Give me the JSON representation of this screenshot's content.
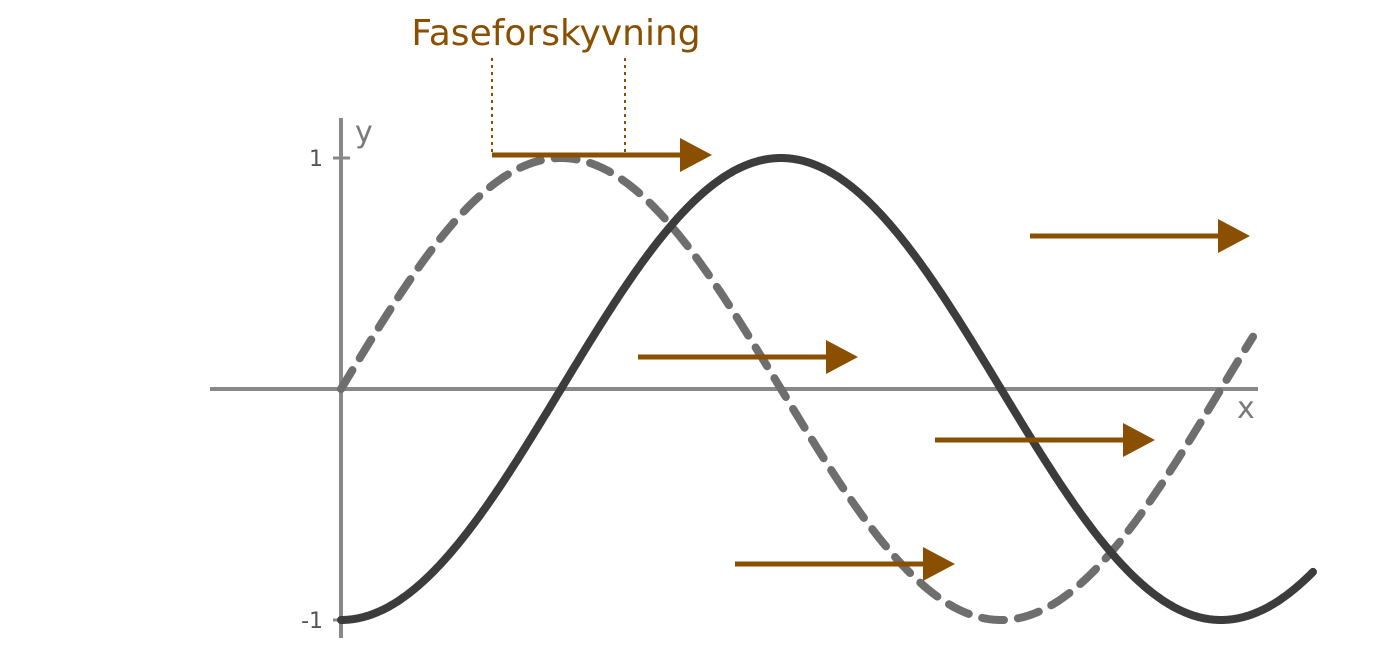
{
  "title": "Faseforskyvning",
  "axes": {
    "x_label": "x",
    "y_label": "y",
    "y_ticks": [
      {
        "value": 1,
        "label": "1"
      },
      {
        "value": -1,
        "label": "-1"
      }
    ]
  },
  "curves": {
    "original": {
      "style": "dashed",
      "color": "#6e6e6e",
      "function": "sin"
    },
    "shifted": {
      "style": "solid",
      "color": "#3c3c3c",
      "function": "sin(x - phase)",
      "phase_fraction_of_period": 0.25
    }
  },
  "colors": {
    "accent": "#8a4f00",
    "axis": "#888888",
    "solid_curve": "#3c3c3c",
    "dashed_curve": "#6e6e6e"
  },
  "shift_arrows": {
    "count": 5,
    "direction": "right",
    "length_fraction_of_period": 0.25
  }
}
